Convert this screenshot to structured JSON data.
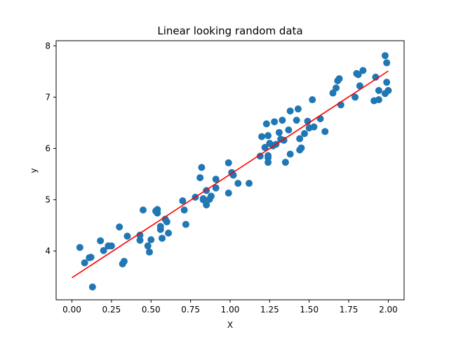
{
  "chart_data": {
    "type": "scatter",
    "title": "Linear looking random data",
    "xlabel": "X",
    "ylabel": "y",
    "xlim": [
      -0.1,
      2.1
    ],
    "ylim": [
      3.05,
      8.1
    ],
    "xticks": [
      0.0,
      0.25,
      0.5,
      0.75,
      1.0,
      1.25,
      1.5,
      1.75,
      2.0
    ],
    "xtick_labels": [
      "0.00",
      "0.25",
      "0.50",
      "0.75",
      "1.00",
      "1.25",
      "1.50",
      "1.75",
      "2.00"
    ],
    "yticks": [
      4,
      5,
      6,
      7,
      8
    ],
    "ytick_labels": [
      "4",
      "5",
      "6",
      "7",
      "8"
    ],
    "grid": false,
    "series": [
      {
        "type": "scatter",
        "color": "#1f77b4",
        "x": [
          0.05,
          0.08,
          0.11,
          0.12,
          0.13,
          0.18,
          0.2,
          0.23,
          0.25,
          0.3,
          0.32,
          0.33,
          0.35,
          0.43,
          0.43,
          0.45,
          0.48,
          0.49,
          0.5,
          0.53,
          0.54,
          0.54,
          0.56,
          0.56,
          0.57,
          0.59,
          0.6,
          0.61,
          0.7,
          0.71,
          0.72,
          0.78,
          0.81,
          0.82,
          0.83,
          0.83,
          0.85,
          0.85,
          0.87,
          0.88,
          0.91,
          0.91,
          0.99,
          0.99,
          1.01,
          1.02,
          1.05,
          1.12,
          1.19,
          1.2,
          1.22,
          1.23,
          1.24,
          1.24,
          1.24,
          1.24,
          1.25,
          1.27,
          1.28,
          1.29,
          1.31,
          1.32,
          1.33,
          1.34,
          1.35,
          1.37,
          1.38,
          1.38,
          1.42,
          1.43,
          1.44,
          1.44,
          1.45,
          1.47,
          1.49,
          1.5,
          1.52,
          1.53,
          1.57,
          1.6,
          1.65,
          1.67,
          1.68,
          1.69,
          1.7,
          1.79,
          1.8,
          1.81,
          1.82,
          1.84,
          1.91,
          1.92,
          1.94,
          1.94,
          1.98,
          1.98,
          1.99,
          1.99,
          2.0
        ],
        "y": [
          4.07,
          3.77,
          3.87,
          3.88,
          3.3,
          4.2,
          4.01,
          4.1,
          4.1,
          4.47,
          3.75,
          3.8,
          4.29,
          4.21,
          4.31,
          4.8,
          4.1,
          3.98,
          4.22,
          4.78,
          4.81,
          4.74,
          4.42,
          4.48,
          4.25,
          4.62,
          4.57,
          4.35,
          4.98,
          4.8,
          4.52,
          5.05,
          5.43,
          5.63,
          5.02,
          5.0,
          4.9,
          5.18,
          5.01,
          5.07,
          5.4,
          5.23,
          5.72,
          5.13,
          5.53,
          5.48,
          5.32,
          5.32,
          5.85,
          6.23,
          6.02,
          6.48,
          5.82,
          5.73,
          6.25,
          5.86,
          6.1,
          6.05,
          6.52,
          6.08,
          6.31,
          6.18,
          6.55,
          6.16,
          5.73,
          6.36,
          5.89,
          6.73,
          6.55,
          6.77,
          6.19,
          5.97,
          6.01,
          6.29,
          6.53,
          6.4,
          6.95,
          6.42,
          6.58,
          6.33,
          7.08,
          7.18,
          7.32,
          7.36,
          6.85,
          7.0,
          7.46,
          7.44,
          7.22,
          7.52,
          6.93,
          7.39,
          6.95,
          7.13,
          7.07,
          7.81,
          7.67,
          7.29,
          7.13
        ]
      },
      {
        "type": "line",
        "color": "#ff0000",
        "x": [
          0.0,
          2.0
        ],
        "y": [
          3.48,
          7.51
        ]
      }
    ]
  }
}
